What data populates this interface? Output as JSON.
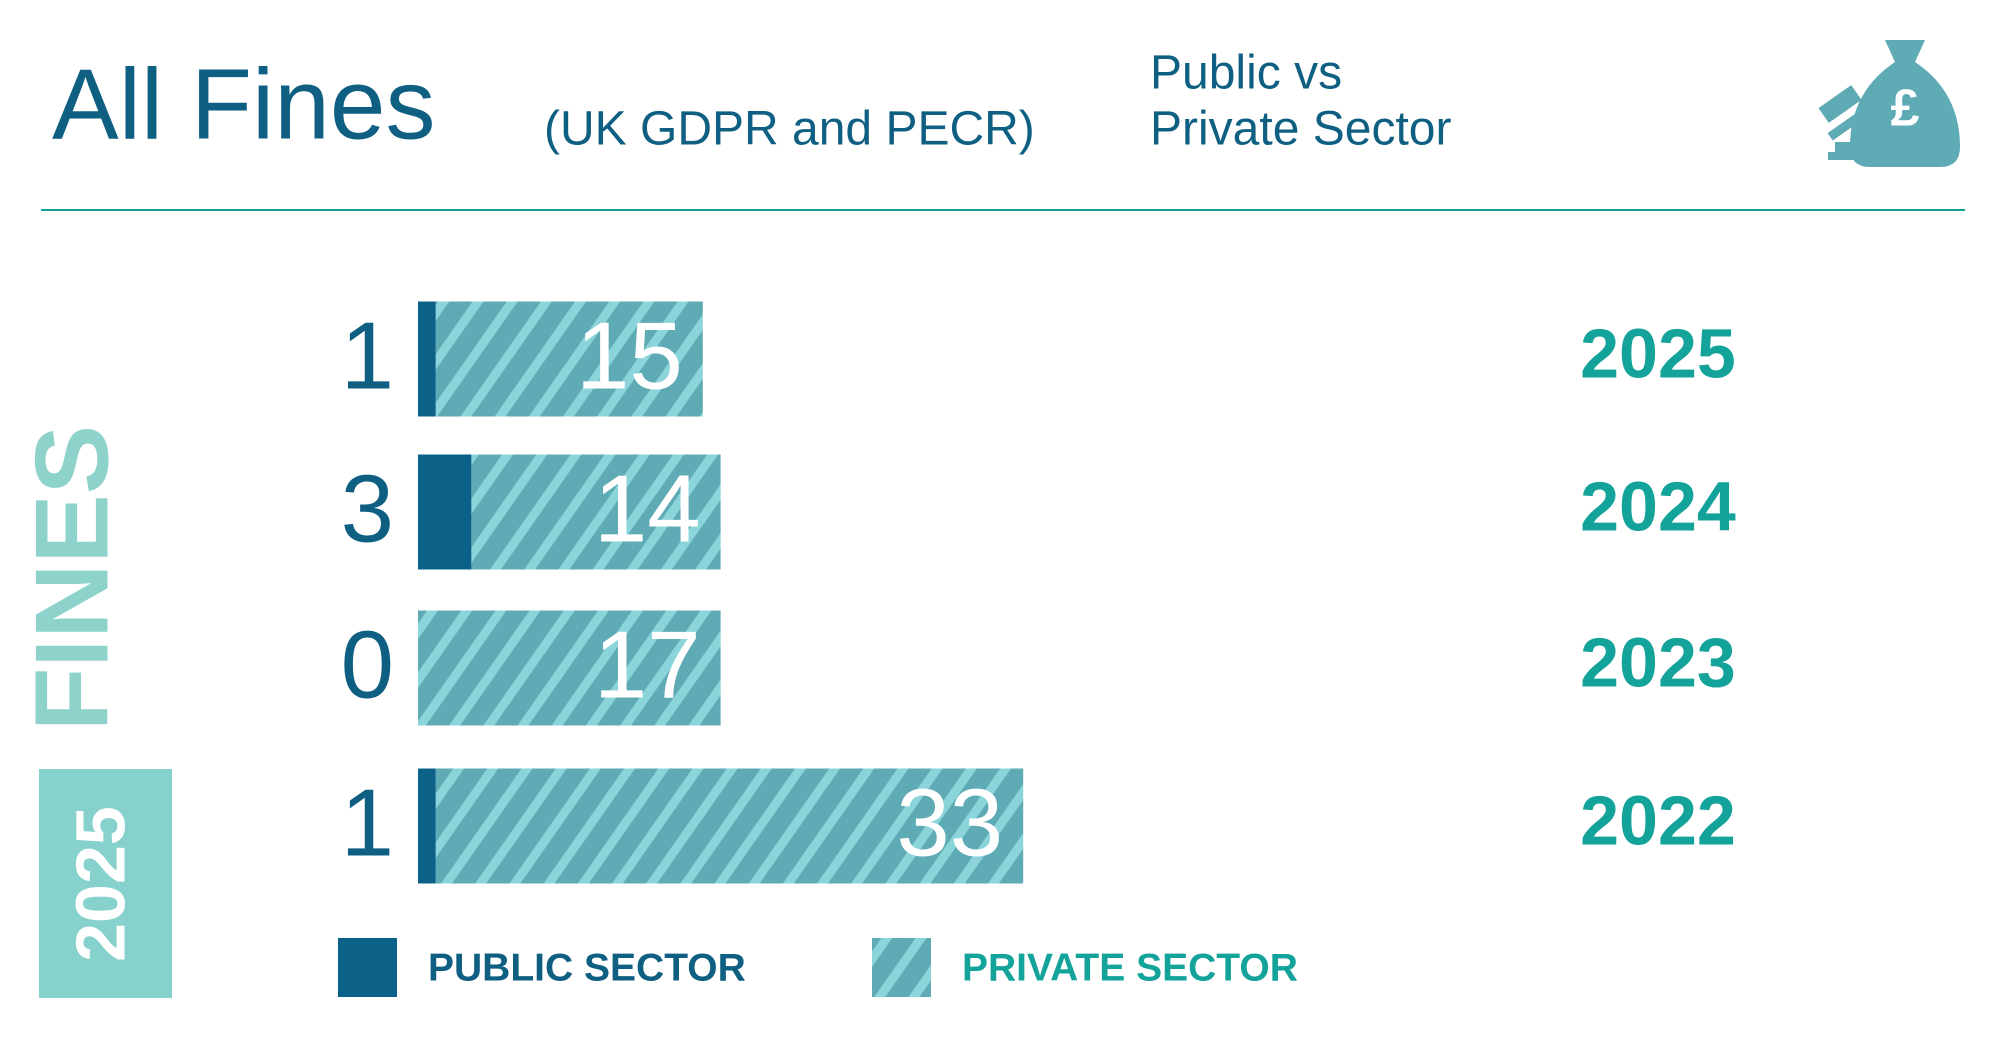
{
  "chart_data": {
    "type": "stacked-bar-horizontal",
    "title": "All Fines",
    "subtitle": "(UK GDPR and PECR)",
    "heading_right": [
      "Public vs",
      "Private Sector"
    ],
    "vertical_label": "FINES",
    "badge": "2025",
    "categories": [
      "2025",
      "2024",
      "2023",
      "2022"
    ],
    "series": [
      {
        "name": "PUBLIC SECTOR",
        "color": "#0c6188",
        "values": [
          1,
          3,
          0,
          1
        ]
      },
      {
        "name": "PRIVATE SECTOR",
        "color": "#5eaab5",
        "pattern_color": "#8ad4da",
        "values": [
          15,
          14,
          17,
          33
        ]
      }
    ]
  }
}
